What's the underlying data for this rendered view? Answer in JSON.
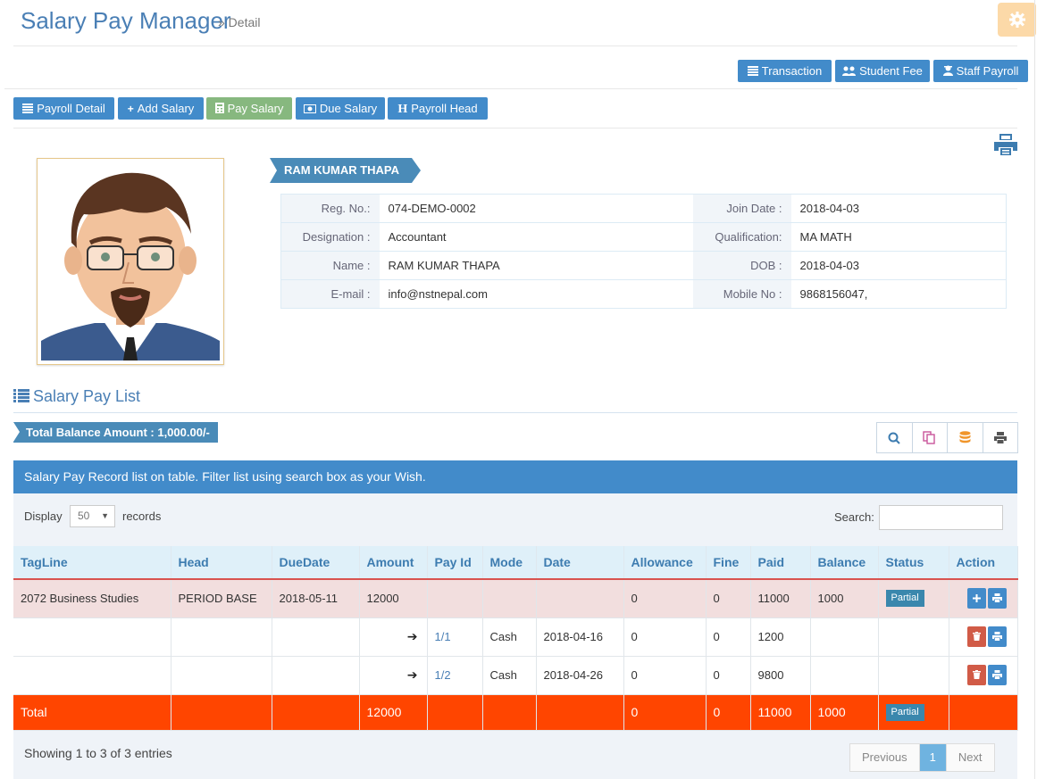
{
  "header": {
    "title": "Salary Pay Manager",
    "subtitle": "» Detail"
  },
  "top_buttons": [
    {
      "label": "Transaction",
      "icon": "list-icon"
    },
    {
      "label": "Student Fee",
      "icon": "users-icon"
    },
    {
      "label": "Staff Payroll",
      "icon": "user-secret-icon"
    }
  ],
  "nav_buttons": [
    {
      "label": "Payroll Detail",
      "icon": "list-icon",
      "active": false
    },
    {
      "label": "Add Salary",
      "icon": "plus-icon",
      "active": false
    },
    {
      "label": "Pay Salary",
      "icon": "calculator-icon",
      "active": true
    },
    {
      "label": "Due Salary",
      "icon": "money-icon",
      "active": false
    },
    {
      "label": "Payroll Head",
      "icon": "h-icon",
      "active": false
    }
  ],
  "profile": {
    "name": "RAM KUMAR THAPA",
    "left": [
      {
        "label": "Reg. No.:",
        "value": "074-DEMO-0002"
      },
      {
        "label": "Designation :",
        "value": "Accountant"
      },
      {
        "label": "Name :",
        "value": "RAM KUMAR THAPA"
      },
      {
        "label": "E-mail :",
        "value": "info@nstnepal.com"
      }
    ],
    "right": [
      {
        "label": "Join Date :",
        "value": "2018-04-03"
      },
      {
        "label": "Qualification:",
        "value": "MA MATH"
      },
      {
        "label": "DOB :",
        "value": "2018-04-03"
      },
      {
        "label": "Mobile No :",
        "value": "9868156047,"
      }
    ]
  },
  "section": {
    "title": "Salary Pay List",
    "total_balance": "Total Balance Amount : 1,000.00/-"
  },
  "panel": {
    "heading": "Salary Pay Record list on table. Filter list using search box as your Wish.",
    "display_label": "Display",
    "display_value": "50",
    "records_label": "records",
    "search_label": "Search:",
    "search_value": ""
  },
  "table": {
    "columns": [
      "TagLine",
      "Head",
      "DueDate",
      "Amount",
      "Pay Id",
      "Mode",
      "Date",
      "Allowance",
      "Fine",
      "Paid",
      "Balance",
      "Status",
      "Action"
    ],
    "main_row": {
      "tagline": "2072 Business Studies",
      "head": "PERIOD BASE",
      "due": "2018-05-11",
      "amount": "12000",
      "allowance": "0",
      "fine": "0",
      "paid": "11000",
      "balance": "1000",
      "status": "Partial"
    },
    "sub_rows": [
      {
        "arrow": "➔",
        "pay_id": "1/1",
        "mode": "Cash",
        "date": "2018-04-16",
        "allowance": "0",
        "fine": "0",
        "paid": "1200"
      },
      {
        "arrow": "➔",
        "pay_id": "1/2",
        "mode": "Cash",
        "date": "2018-04-26",
        "allowance": "0",
        "fine": "0",
        "paid": "9800"
      }
    ],
    "total_row": {
      "label": "Total",
      "amount": "12000",
      "allowance": "0",
      "fine": "0",
      "paid": "11000",
      "balance": "1000",
      "status": "Partial"
    }
  },
  "footer": {
    "info": "Showing 1 to 3 of 3 entries",
    "prev": "Previous",
    "page": "1",
    "next": "Next"
  },
  "colors": {
    "primary": "#428bca",
    "success": "#87b87f",
    "danger": "#d15b47",
    "total": "#ff4500",
    "header": "#4a7fb5"
  }
}
